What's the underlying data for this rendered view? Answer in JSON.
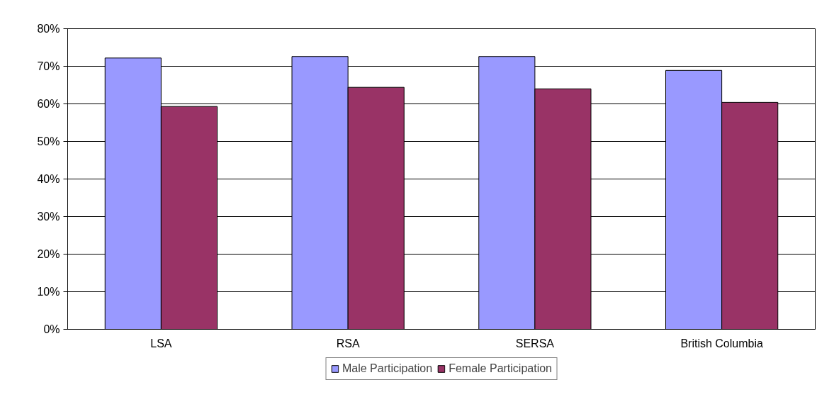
{
  "chart_data": {
    "type": "bar",
    "categories": [
      "LSA",
      "RSA",
      "SERSA",
      "British Columbia"
    ],
    "series": [
      {
        "name": "Male Participation",
        "color": "#9999ff",
        "values": [
          72.2,
          72.6,
          72.6,
          68.9
        ]
      },
      {
        "name": "Female Participation",
        "color": "#993366",
        "values": [
          59.3,
          64.4,
          64.0,
          60.4
        ]
      }
    ],
    "ylim": [
      0,
      80
    ],
    "yticks": [
      {
        "value": 0,
        "label": "0%"
      },
      {
        "value": 10,
        "label": "10%"
      },
      {
        "value": 20,
        "label": "20%"
      },
      {
        "value": 30,
        "label": "30%"
      },
      {
        "value": 40,
        "label": "40%"
      },
      {
        "value": 50,
        "label": "50%"
      },
      {
        "value": 60,
        "label": "60%"
      },
      {
        "value": 70,
        "label": "70%"
      },
      {
        "value": 80,
        "label": "80%"
      }
    ],
    "grid": "y",
    "legend": "bottom"
  }
}
